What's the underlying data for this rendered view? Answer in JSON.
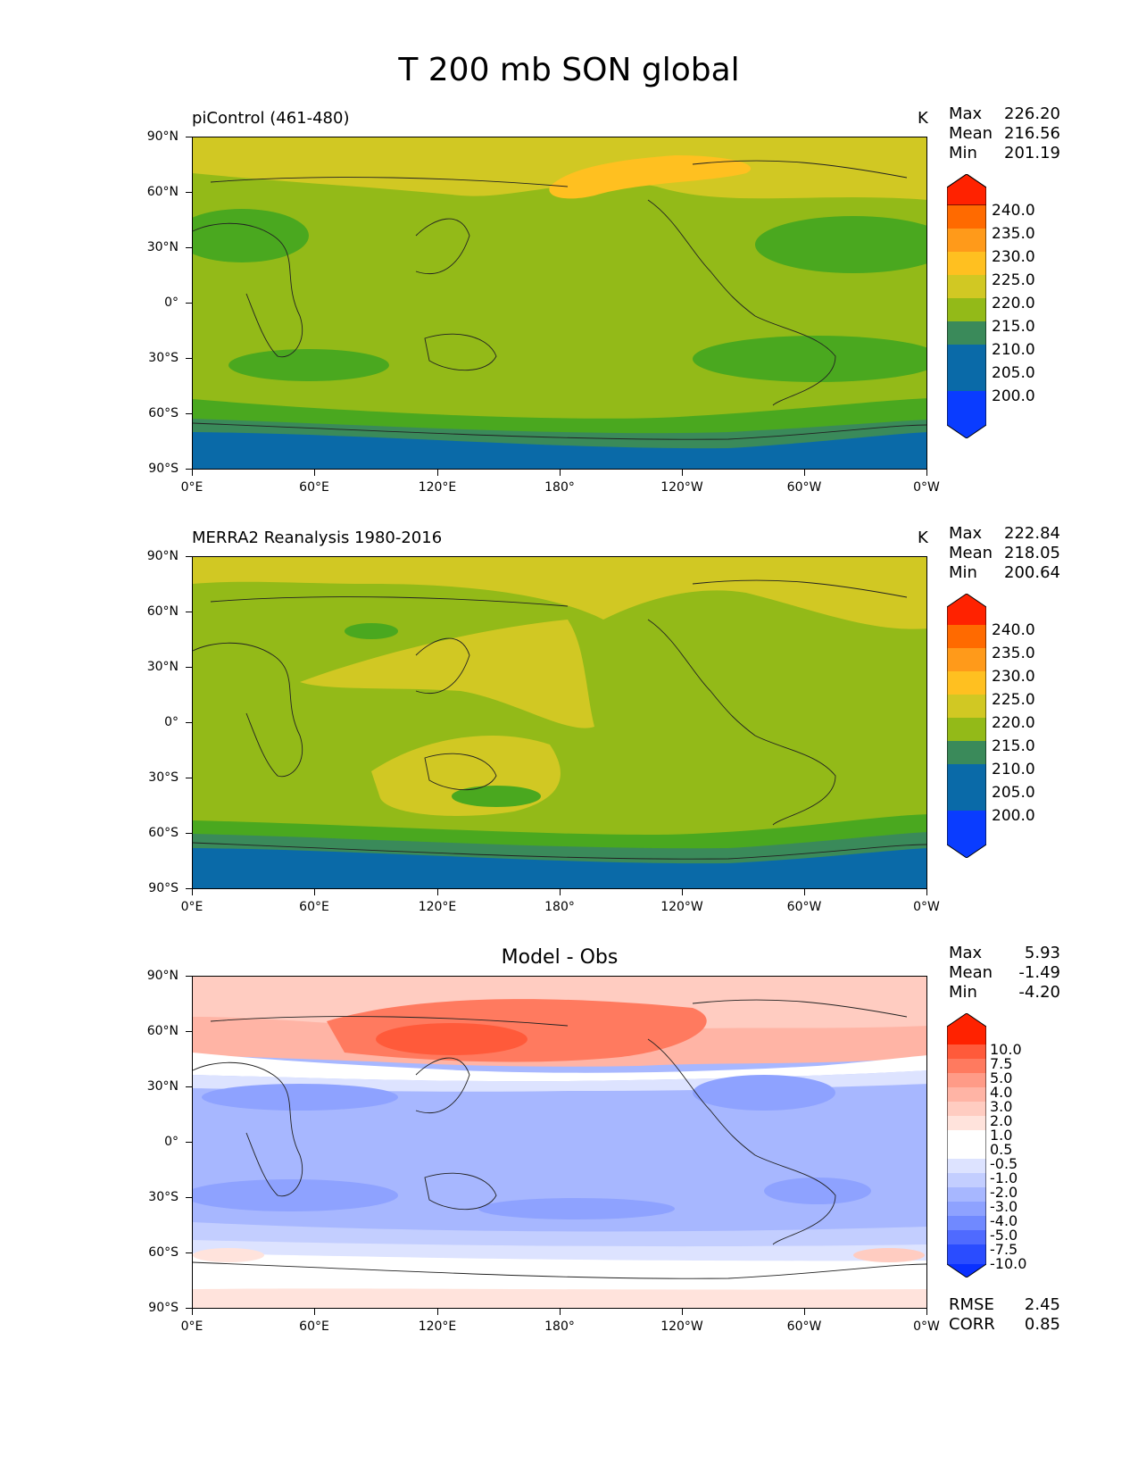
{
  "figure": {
    "title": "T 200 mb SON global"
  },
  "axes": {
    "lat_ticks": [
      "90°N",
      "60°N",
      "30°N",
      "0°",
      "30°S",
      "60°S",
      "90°S"
    ],
    "lon_ticks": [
      "0°E",
      "60°E",
      "120°E",
      "180°",
      "120°W",
      "60°W",
      "0°W"
    ]
  },
  "panels": [
    {
      "title": "piControl (461-480)",
      "units": "K",
      "stats": {
        "max_label": "Max",
        "max": "226.20",
        "mean_label": "Mean",
        "mean": "216.56",
        "min_label": "Min",
        "min": "201.19"
      },
      "colorbar": {
        "levels": [
          "240.0",
          "235.0",
          "230.0",
          "225.0",
          "220.0",
          "215.0",
          "210.0",
          "205.0",
          "200.0"
        ]
      }
    },
    {
      "title": "MERRA2 Reanalysis 1980-2016",
      "units": "K",
      "stats": {
        "max_label": "Max",
        "max": "222.84",
        "mean_label": "Mean",
        "mean": "218.05",
        "min_label": "Min",
        "min": "200.64"
      },
      "colorbar": {
        "levels": [
          "240.0",
          "235.0",
          "230.0",
          "225.0",
          "220.0",
          "215.0",
          "210.0",
          "205.0",
          "200.0"
        ]
      }
    },
    {
      "title": "Model - Obs",
      "stats": {
        "max_label": "Max",
        "max": "5.93",
        "mean_label": "Mean",
        "mean": "-1.49",
        "min_label": "Min",
        "min": "-4.20"
      },
      "colorbar": {
        "levels": [
          "10.0",
          "7.5",
          "5.0",
          "4.0",
          "3.0",
          "2.0",
          "1.0",
          "0.5",
          "-0.5",
          "-1.0",
          "-2.0",
          "-3.0",
          "-4.0",
          "-5.0",
          "-7.5",
          "-10.0"
        ]
      },
      "metrics": {
        "rmse_label": "RMSE",
        "rmse": "2.45",
        "corr_label": "CORR",
        "corr": "0.85"
      }
    }
  ],
  "colors": {
    "abs_scale": [
      "#ff2200",
      "#ff6a00",
      "#ff9a1a",
      "#ffc020",
      "#d1c823",
      "#93ba18",
      "#4aa81f",
      "#3a8a5a",
      "#0a6aa8",
      "#0a3cff"
    ],
    "diff_scale": [
      "#ff2200",
      "#ff5a3a",
      "#ff7a5f",
      "#ff9b87",
      "#ffb4a5",
      "#ffccc1",
      "#ffe3dc",
      "#ffffff",
      "#ffffff",
      "#dde3ff",
      "#c3ceff",
      "#a7b7ff",
      "#8ea2ff",
      "#7089ff",
      "#4f6aff",
      "#2a4cff",
      "#0a30ff"
    ]
  }
}
